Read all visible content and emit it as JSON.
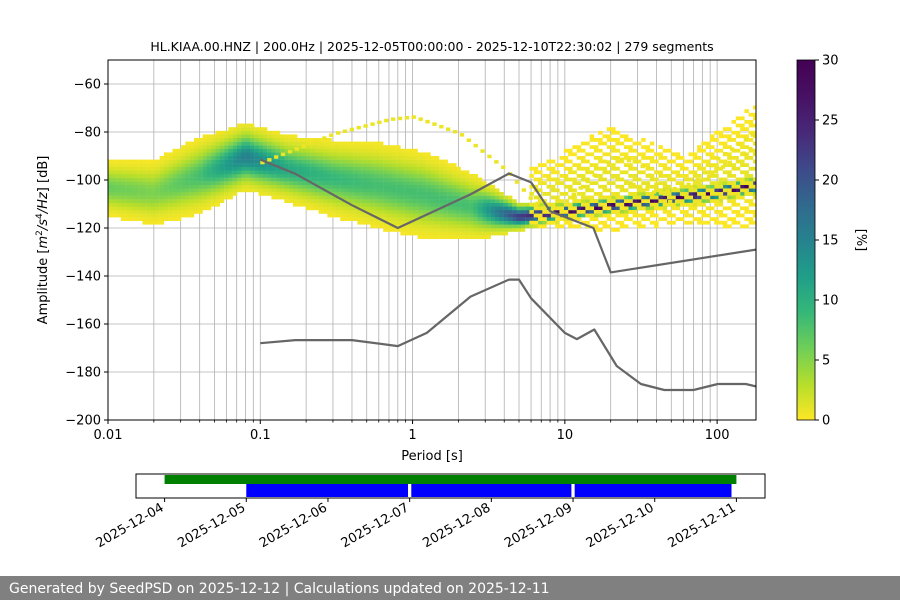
{
  "chart_data": {
    "type": "heatmap",
    "title": "HL.KIAA.00.HNZ | 200.0Hz | 2025-12-05T00:00:00 - 2025-12-10T22:30:02 | 279 segments",
    "xlabel": "Period [s]",
    "ylabel": "Amplitude [m²/s⁴/Hz] [dB]",
    "ylabel_parts": [
      "Amplitude [",
      "m",
      "2",
      "/",
      "s",
      "4",
      "/",
      "Hz",
      "] [dB]"
    ],
    "xscale": "log",
    "xlim": [
      0.01,
      180
    ],
    "ylim": [
      -200,
      -50
    ],
    "x_ticks": [
      0.01,
      0.1,
      1,
      10,
      100
    ],
    "x_tick_labels": [
      "0.01",
      "0.1",
      "1",
      "10",
      "100"
    ],
    "y_ticks": [
      -200,
      -180,
      -160,
      -140,
      -120,
      -100,
      -80,
      -60
    ],
    "y_tick_labels": [
      "−200",
      "−180",
      "−160",
      "−140",
      "−120",
      "−100",
      "−80",
      "−60"
    ],
    "grid": true,
    "colorbar": {
      "label": "[%]",
      "range": [
        0,
        30
      ],
      "ticks": [
        0,
        5,
        10,
        15,
        20,
        25,
        30
      ],
      "tick_labels": [
        "0",
        "5",
        "10",
        "15",
        "20",
        "25",
        "30"
      ],
      "colormap": "viridis_r"
    },
    "density_bands": [
      {
        "name": "main-noise-band",
        "points": [
          {
            "x": 0.01,
            "center": -104,
            "width": 12,
            "peak": 7
          },
          {
            "x": 0.02,
            "center": -106,
            "width": 14,
            "peak": 6
          },
          {
            "x": 0.04,
            "center": -99,
            "width": 16,
            "peak": 9
          },
          {
            "x": 0.08,
            "center": -91,
            "width": 14,
            "peak": 17
          },
          {
            "x": 0.15,
            "center": -96,
            "width": 14,
            "peak": 12
          },
          {
            "x": 0.3,
            "center": -100,
            "width": 16,
            "peak": 10
          },
          {
            "x": 0.6,
            "center": -103,
            "width": 18,
            "peak": 9
          },
          {
            "x": 1.2,
            "center": -107,
            "width": 18,
            "peak": 9
          },
          {
            "x": 2.5,
            "center": -112,
            "width": 14,
            "peak": 9
          },
          {
            "x": 5,
            "center": -116,
            "width": 6,
            "peak": 25
          },
          {
            "x": 10,
            "center": -114,
            "width": 4,
            "peak": 30
          },
          {
            "x": 30,
            "center": -110,
            "width": 4,
            "peak": 30
          },
          {
            "x": 100,
            "center": -106,
            "width": 4,
            "peak": 30
          },
          {
            "x": 180,
            "center": -103,
            "width": 4,
            "peak": 30
          }
        ]
      },
      {
        "name": "long-period-scatter",
        "points": [
          {
            "x": 6,
            "center": -108,
            "width": 12,
            "peak": 1
          },
          {
            "x": 20,
            "center": -100,
            "width": 22,
            "peak": 1
          },
          {
            "x": 60,
            "center": -105,
            "width": 14,
            "peak": 1
          },
          {
            "x": 180,
            "center": -95,
            "width": 26,
            "peak": 1
          }
        ]
      }
    ],
    "sparse_traces": [
      {
        "name": "upper-arc",
        "points": [
          [
            0.1,
            -92
          ],
          [
            0.3,
            -80
          ],
          [
            0.7,
            -74
          ],
          [
            1,
            -73
          ],
          [
            2,
            -80
          ],
          [
            4,
            -95
          ],
          [
            6,
            -108
          ],
          [
            10,
            -116
          ]
        ]
      },
      {
        "name": "upper-right-arc",
        "points": [
          [
            10,
            -108
          ],
          [
            20,
            -90
          ],
          [
            30,
            -92
          ],
          [
            50,
            -110
          ],
          [
            70,
            -100
          ],
          [
            100,
            -90
          ],
          [
            180,
            -79
          ]
        ]
      },
      {
        "name": "second-right-arc",
        "points": [
          [
            20,
            -98
          ],
          [
            40,
            -105
          ],
          [
            80,
            -99
          ],
          [
            180,
            -84
          ]
        ]
      }
    ],
    "series": [
      {
        "name": "noise-model-upper",
        "color": "#666666",
        "points": [
          [
            0.1,
            -91.5
          ],
          [
            0.17,
            -97.4
          ],
          [
            0.4,
            -110.5
          ],
          [
            0.8,
            -120
          ],
          [
            2.4,
            -106
          ],
          [
            4.3,
            -97.3
          ],
          [
            6,
            -101
          ],
          [
            8,
            -113
          ],
          [
            15.4,
            -120
          ],
          [
            20,
            -138.5
          ],
          [
            180,
            -129
          ]
        ]
      },
      {
        "name": "noise-model-lower",
        "color": "#666666",
        "points": [
          [
            0.1,
            -168
          ],
          [
            0.17,
            -166.7
          ],
          [
            0.4,
            -166.7
          ],
          [
            0.8,
            -169.2
          ],
          [
            1.24,
            -163.7
          ],
          [
            2.4,
            -148.6
          ],
          [
            4.3,
            -141.5
          ],
          [
            5,
            -141.5
          ],
          [
            6,
            -149.3
          ],
          [
            10,
            -163.7
          ],
          [
            12,
            -166.3
          ],
          [
            15.6,
            -162.3
          ],
          [
            21.9,
            -177.5
          ],
          [
            31.6,
            -185
          ],
          [
            45,
            -187.5
          ],
          [
            70,
            -187.5
          ],
          [
            101,
            -185
          ],
          [
            154,
            -185
          ],
          [
            180,
            -186
          ]
        ]
      }
    ]
  },
  "time_coverage": {
    "date_labels": [
      "2025-12-04",
      "2025-12-05",
      "2025-12-06",
      "2025-12-07",
      "2025-12-08",
      "2025-12-09",
      "2025-12-10",
      "2025-12-11"
    ],
    "axis_start_day": -0.35,
    "axis_end_day": 7.35,
    "green_bar": {
      "color": "#008000",
      "start_day": 0,
      "end_day": 7
    },
    "blue_segments": [
      {
        "color": "#0000ff",
        "start_day": 1.0,
        "end_day": 2.98
      },
      {
        "color": "#0000ff",
        "start_day": 3.02,
        "end_day": 4.98
      },
      {
        "color": "#0000ff",
        "start_day": 5.02,
        "end_day": 6.94
      }
    ]
  },
  "footer": {
    "text": "Generated by SeedPSD on 2025-12-12 | Calculations updated on 2025-12-11"
  }
}
